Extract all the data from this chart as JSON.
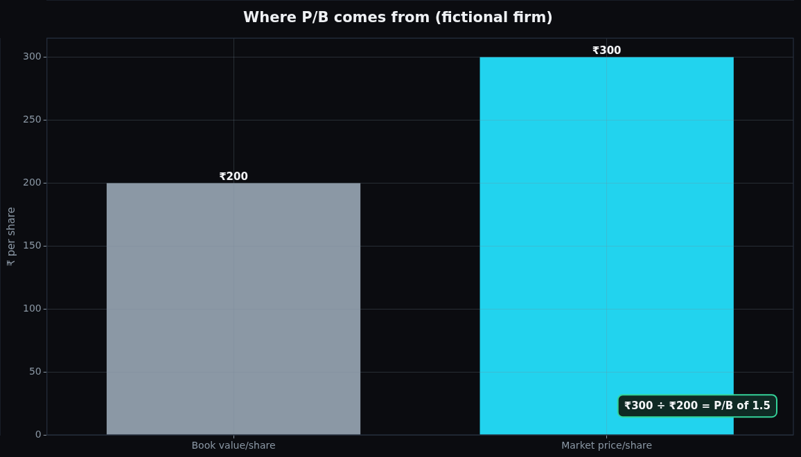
{
  "chart_data": {
    "type": "bar",
    "title": "Where P/B comes from (fictional firm)",
    "ylabel": "₹ per share",
    "categories": [
      "Book value/share",
      "Market price/share"
    ],
    "values": [
      200,
      300
    ],
    "colors": [
      "#8b98a5",
      "#22d3ee"
    ],
    "value_labels": [
      "₹200",
      "₹300"
    ],
    "ylim": [
      0,
      315
    ],
    "yticks": [
      0,
      50,
      100,
      150,
      200,
      250,
      300
    ],
    "grid": true,
    "annotations": [
      "₹300 ÷ ₹200 = P/B of 1.5"
    ]
  }
}
